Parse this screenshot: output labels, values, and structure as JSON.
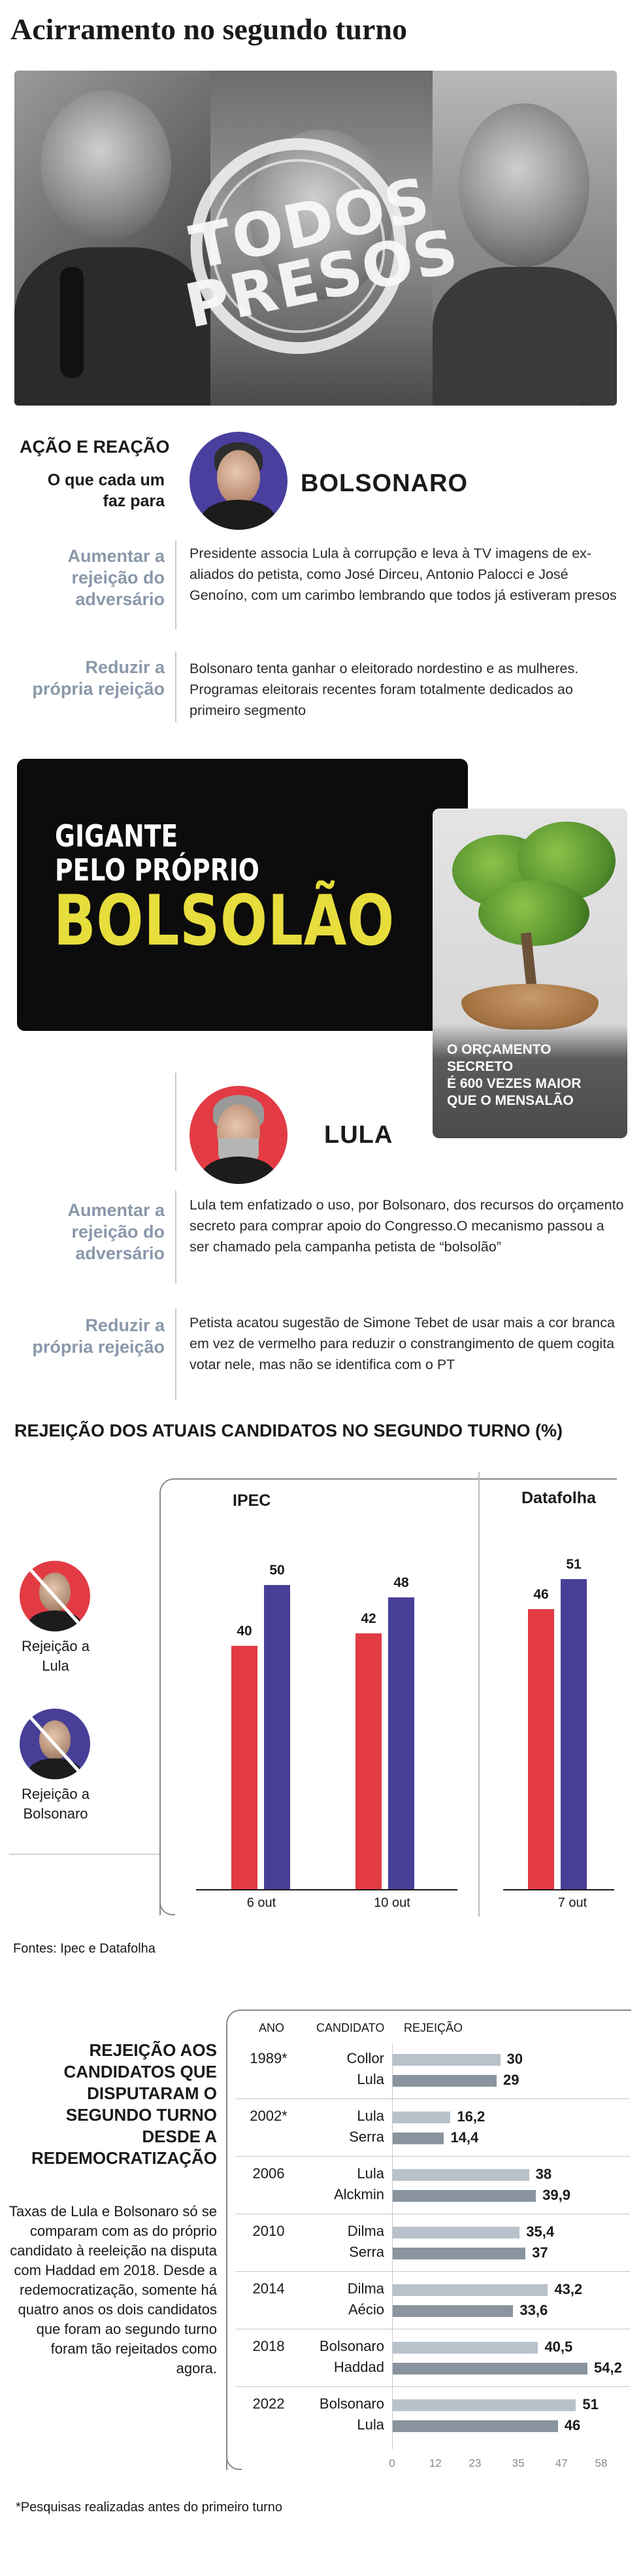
{
  "title": "Acirramento no segundo turno",
  "hero": {
    "stamp_line1": "TODOS",
    "stamp_line2": "PRESOS"
  },
  "section": {
    "heading": "AÇÃO E REAÇÃO",
    "subheading": "O que cada um faz para"
  },
  "bolsonaro": {
    "name": "BOLSONARO",
    "avatar_bg": "#4a3f9e",
    "rows": [
      {
        "label": "Aumentar a rejeição do adversário",
        "text": "Presidente associa Lula à corrupção e leva à TV imagens de ex-aliados do petista, como José Dirceu, Antonio Palocci e José Genoíno, com um carimbo lembrando que todos já estiveram presos"
      },
      {
        "label": "Reduzir a própria rejeição",
        "text": "Bolsonaro tenta ganhar o eleitorado nordestino e as mulheres. Programas eleitorais recentes foram totalmente dedicados ao primeiro segmento"
      }
    ]
  },
  "poster": {
    "line1": "GIGANTE",
    "line2": "PELO PRÓPRIO",
    "line3": "BOLSOLÃO",
    "tree_caption_1": "O ORÇAMENTO SECRETO",
    "tree_caption_2": "É 600 VEZES MAIOR",
    "tree_caption_3": "QUE O MENSALÃO"
  },
  "lula": {
    "name": "LULA",
    "avatar_bg": "#e23b44",
    "rows": [
      {
        "label": "Aumentar a rejeição do adversário",
        "text": "Lula tem enfatizado o uso, por Bolsonaro, dos recursos do orçamento secreto para comprar apoio do Congresso.O mecanismo passou a ser chamado pela campanha petista de “bolsolão”"
      },
      {
        "label": "Reduzir a própria rejeição",
        "text": "Petista acatou sugestão de Simone Tebet de usar mais a cor branca em vez de vermelho para reduzir o constrangimento de quem cogita votar nele, mas não se identifica com o PT"
      }
    ]
  },
  "colors": {
    "lula_red": "#e23b44",
    "bolsonaro_purple": "#473f97",
    "label_gray": "#8a98aa",
    "hist_light": "#b9c2cb",
    "hist_dark": "#8a949e",
    "poster_yellow": "#e7dd3c"
  },
  "chart_data": [
    {
      "type": "bar",
      "title": "REJEIÇÃO DOS ATUAIS CANDIDATOS NO SEGUNDO TURNO (%)",
      "panels": [
        {
          "name": "IPEC",
          "categories": [
            "6 out",
            "10 out"
          ]
        },
        {
          "name": "Datafolha",
          "categories": [
            "7 out"
          ]
        }
      ],
      "categories": [
        "6 out",
        "10 out",
        "7 out"
      ],
      "series": [
        {
          "name": "Rejeição a Lula",
          "color": "#e23b44",
          "values": [
            40,
            42,
            46
          ]
        },
        {
          "name": "Rejeição a Bolsonaro",
          "color": "#473f97",
          "values": [
            50,
            48,
            51
          ]
        }
      ],
      "source": "Fontes: Ipec e Datafolha"
    },
    {
      "type": "bar",
      "title": "REJEIÇÃO AOS CANDIDATOS QUE DISPUTARAM O SEGUNDO TURNO DESDE A REDEMOCRATIZAÇÃO",
      "column_headers": [
        "ANO",
        "CANDIDATO",
        "REJEIÇÃO"
      ],
      "years": [
        {
          "year": "1989*",
          "candidates": [
            {
              "name": "Collor",
              "value": 30
            },
            {
              "name": "Lula",
              "value": 29
            }
          ]
        },
        {
          "year": "2002*",
          "candidates": [
            {
              "name": "Lula",
              "value": 16.2
            },
            {
              "name": "Serra",
              "value": 14.4
            }
          ]
        },
        {
          "year": "2006",
          "candidates": [
            {
              "name": "Lula",
              "value": 38
            },
            {
              "name": "Alckmin",
              "value": 39.9
            }
          ]
        },
        {
          "year": "2010",
          "candidates": [
            {
              "name": "Dilma",
              "value": 35.4
            },
            {
              "name": "Serra",
              "value": 37
            }
          ]
        },
        {
          "year": "2014",
          "candidates": [
            {
              "name": "Dilma",
              "value": 43.2
            },
            {
              "name": "Aécio",
              "value": 33.6
            }
          ]
        },
        {
          "year": "2018",
          "candidates": [
            {
              "name": "Bolsonaro",
              "value": 40.5
            },
            {
              "name": "Haddad",
              "value": 54.2
            }
          ]
        },
        {
          "year": "2022",
          "candidates": [
            {
              "name": "Bolsonaro",
              "value": 51
            },
            {
              "name": "Lula",
              "value": 46
            }
          ]
        }
      ],
      "xticks": [
        "0",
        "12",
        "23",
        "35",
        "47",
        "58"
      ],
      "xlim": [
        0,
        58
      ]
    }
  ],
  "legend": {
    "lula": "Rejeição a Lula",
    "bolsonaro": "Rejeição a Bolsonaro"
  },
  "history": {
    "title": "REJEIÇÃO AOS CANDIDATOS QUE DISPUTARAM O SEGUNDO TURNO DESDE A REDEMOCRATIZAÇÃO",
    "paragraph": "Taxas de Lula e Bolsonaro só se comparam com as do próprio candidato à reeleição na disputa com Haddad em 2018. Desde a redemocratização, somente há quatro anos os dois candidatos que foram ao segundo turno foram tão rejeitados como agora.",
    "col_year": "ANO",
    "col_candidate": "CANDIDATO",
    "col_rejection": "REJEIÇÃO"
  },
  "footnote": "*Pesquisas realizadas antes do primeiro turno"
}
